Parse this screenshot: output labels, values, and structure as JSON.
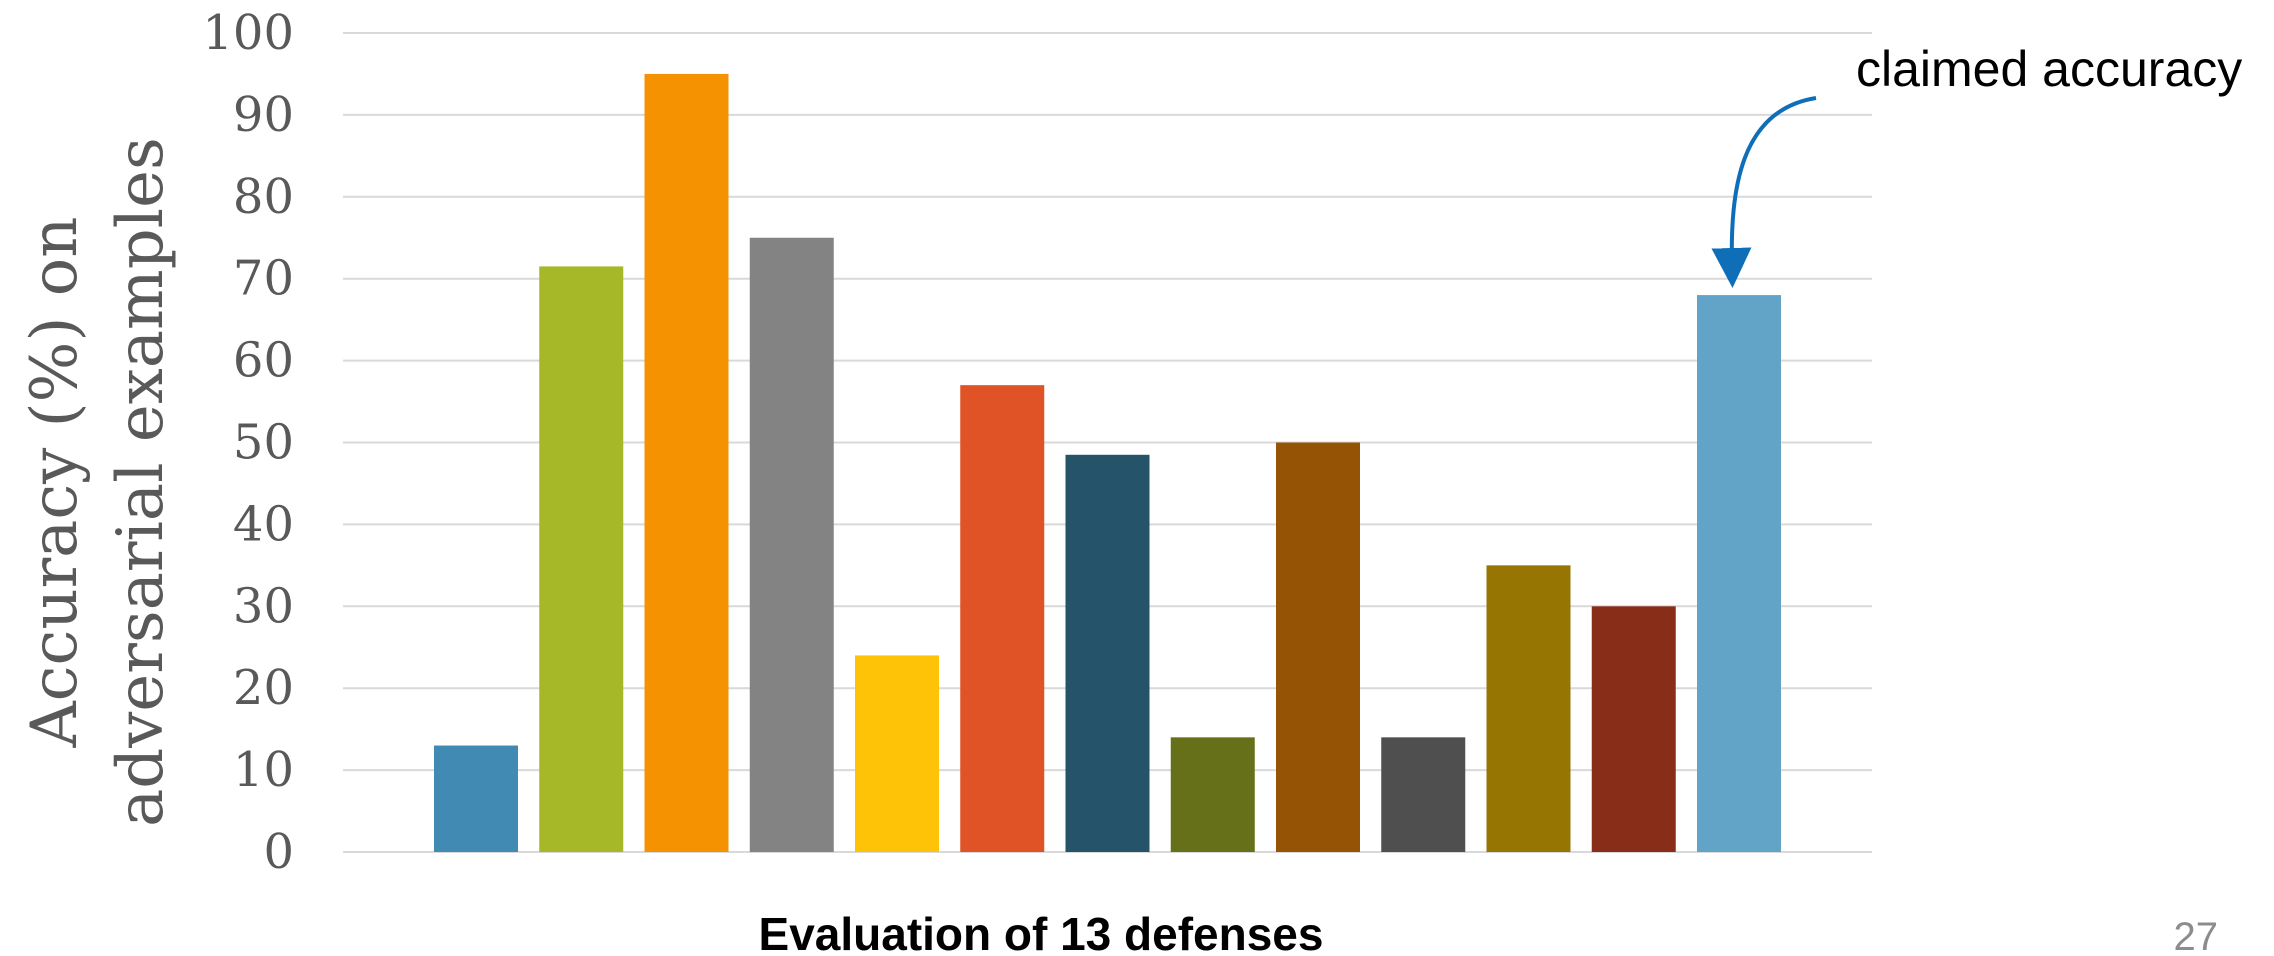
{
  "chart_data": {
    "type": "bar",
    "xlabel": "Evaluation of 13 defenses",
    "ylabel_lines": [
      "Accuracy (%) on",
      "adversarial examples"
    ],
    "ylim": [
      0,
      100
    ],
    "yticks": [
      "0",
      "10",
      "20",
      "30",
      "40",
      "50",
      "60",
      "70",
      "80",
      "90",
      "100"
    ],
    "grid": true,
    "values": [
      13,
      71.5,
      95,
      75,
      24,
      57,
      48.5,
      14,
      50,
      14,
      35,
      30,
      68
    ],
    "colors": [
      "#418AB3",
      "#A6B727",
      "#F59201",
      "#838383",
      "#FEC306",
      "#DF5327",
      "#255369",
      "#657019",
      "#955405",
      "#4F4F4F",
      "#977503",
      "#882E18",
      "#62A4C8"
    ],
    "annotation": {
      "text": "claimed accuracy",
      "arrow_color": "#0E6EB8",
      "target_bar": 12
    }
  },
  "page_number": "27"
}
